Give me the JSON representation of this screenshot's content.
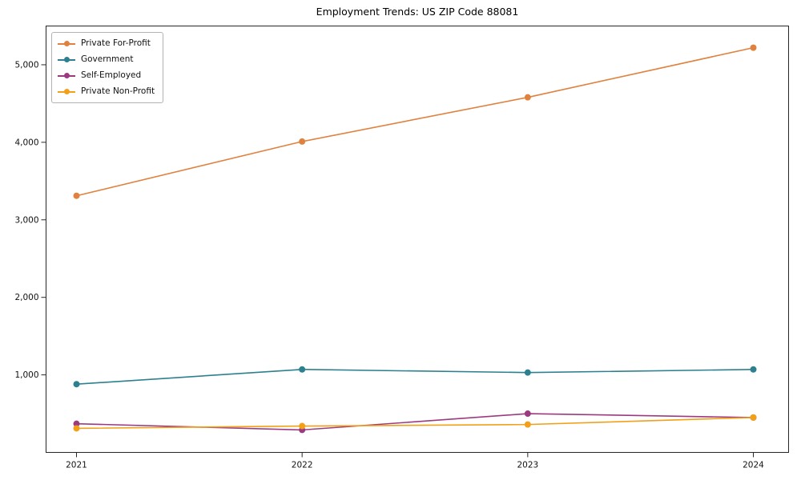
{
  "chart_data": {
    "type": "line",
    "title": "Employment Trends: US ZIP Code 88081",
    "categories": [
      "2021",
      "2022",
      "2023",
      "2024"
    ],
    "series": [
      {
        "name": "Private For-Profit",
        "color": "#e0813e",
        "values": [
          3310,
          4010,
          4580,
          5220
        ]
      },
      {
        "name": "Government",
        "color": "#2d808f",
        "values": [
          880,
          1070,
          1030,
          1070
        ]
      },
      {
        "name": "Self-Employed",
        "color": "#9c3a80",
        "values": [
          370,
          290,
          500,
          450
        ]
      },
      {
        "name": "Private Non-Profit",
        "color": "#f2a018",
        "values": [
          310,
          340,
          360,
          450
        ]
      }
    ],
    "xlabel": "",
    "ylabel": "",
    "ylim": [
      0,
      5500
    ],
    "yticks": [
      {
        "value": 1000,
        "label": "1,000"
      },
      {
        "value": 2000,
        "label": "2,000"
      },
      {
        "value": 3000,
        "label": "3,000"
      },
      {
        "value": 4000,
        "label": "4,000"
      },
      {
        "value": 5000,
        "label": "5,000"
      }
    ],
    "legend_position": "upper left",
    "grid": false,
    "marker": "circle"
  }
}
